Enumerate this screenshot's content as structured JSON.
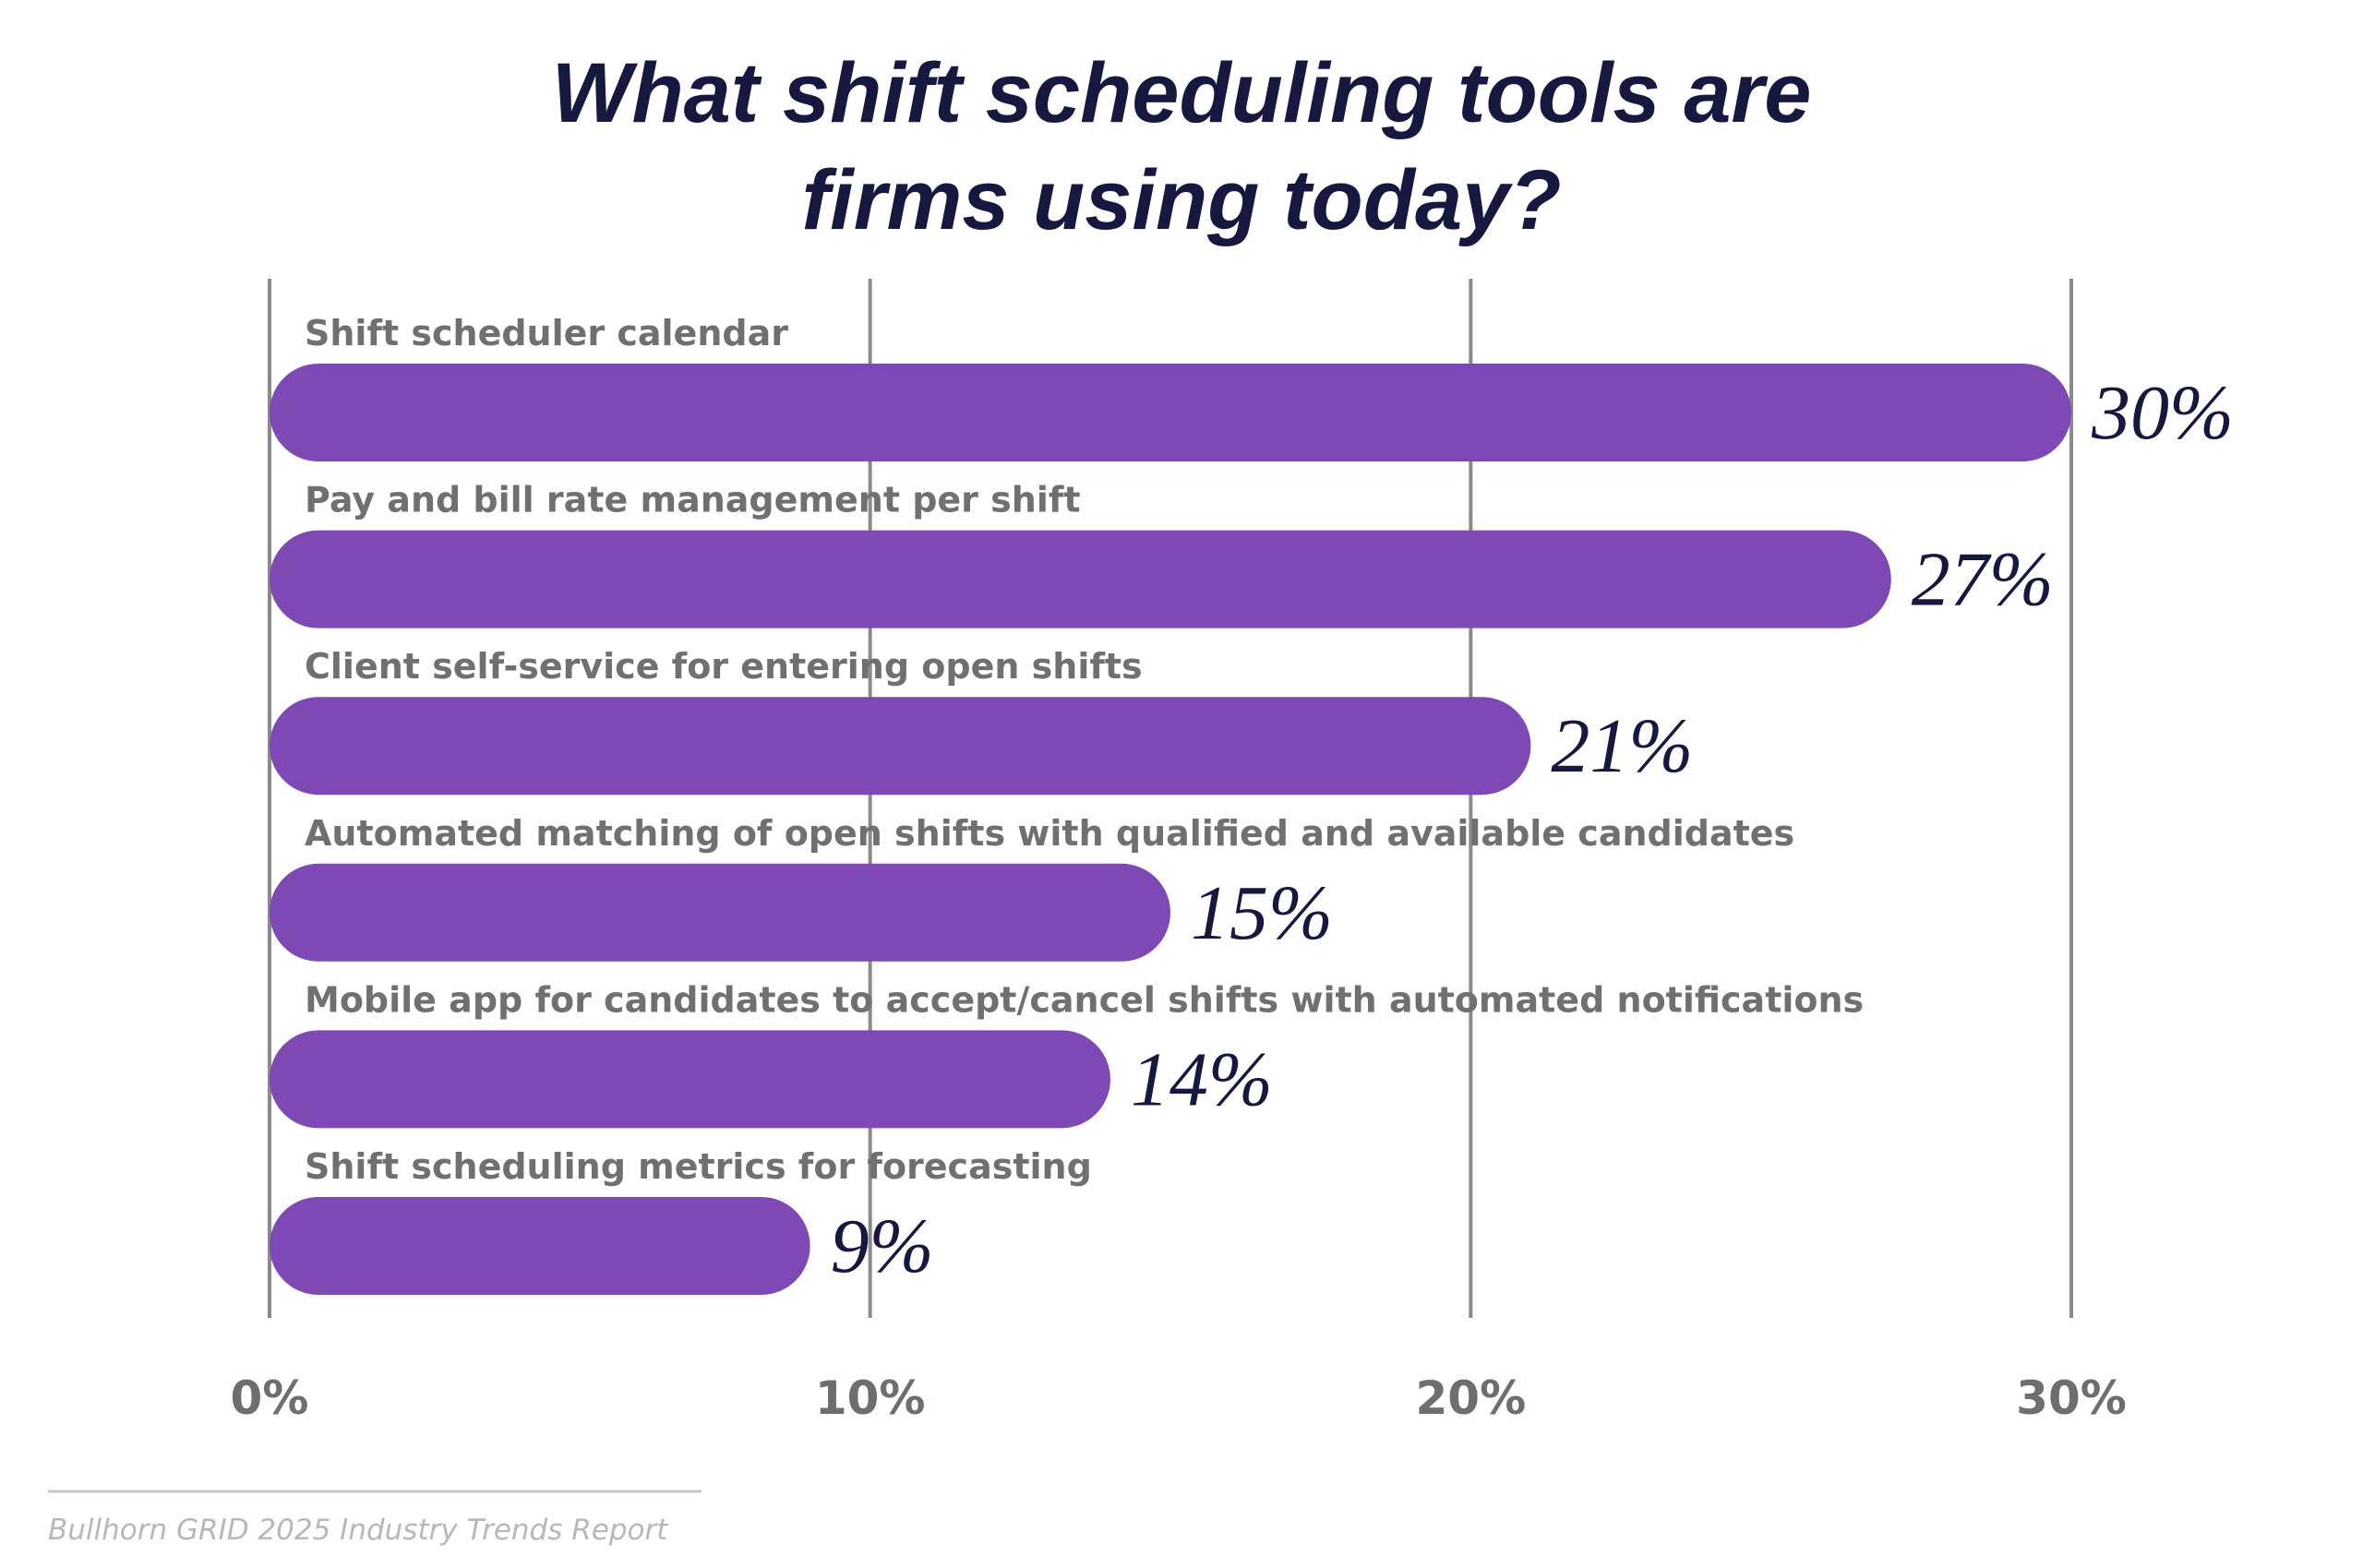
{
  "chart_data": {
    "type": "bar",
    "orientation": "horizontal",
    "title": [
      "What shift scheduling tools are",
      "firms using today?"
    ],
    "categories": [
      "Shift scheduler calendar",
      "Pay and bill rate management per shift",
      "Client self-service for entering open shifts",
      "Automated matching of open shifts with qualified and available candidates",
      "Mobile app for candidates to accept/cancel shifts with automated notifications",
      "Shift scheduling metrics for forecasting"
    ],
    "values": [
      30,
      27,
      21,
      15,
      14,
      9
    ],
    "value_labels": [
      "30%",
      "27%",
      "21%",
      "15%",
      "14%",
      "9%"
    ],
    "xlim": [
      0,
      30
    ],
    "ticks": [
      0,
      10,
      20,
      30
    ],
    "tick_labels": [
      "0%",
      "10%",
      "20%",
      "30%"
    ],
    "grid": true,
    "bar_color": "#7f49b5",
    "legend": "none"
  },
  "source": "Bullhorn GRID 2025 Industry Trends Report"
}
